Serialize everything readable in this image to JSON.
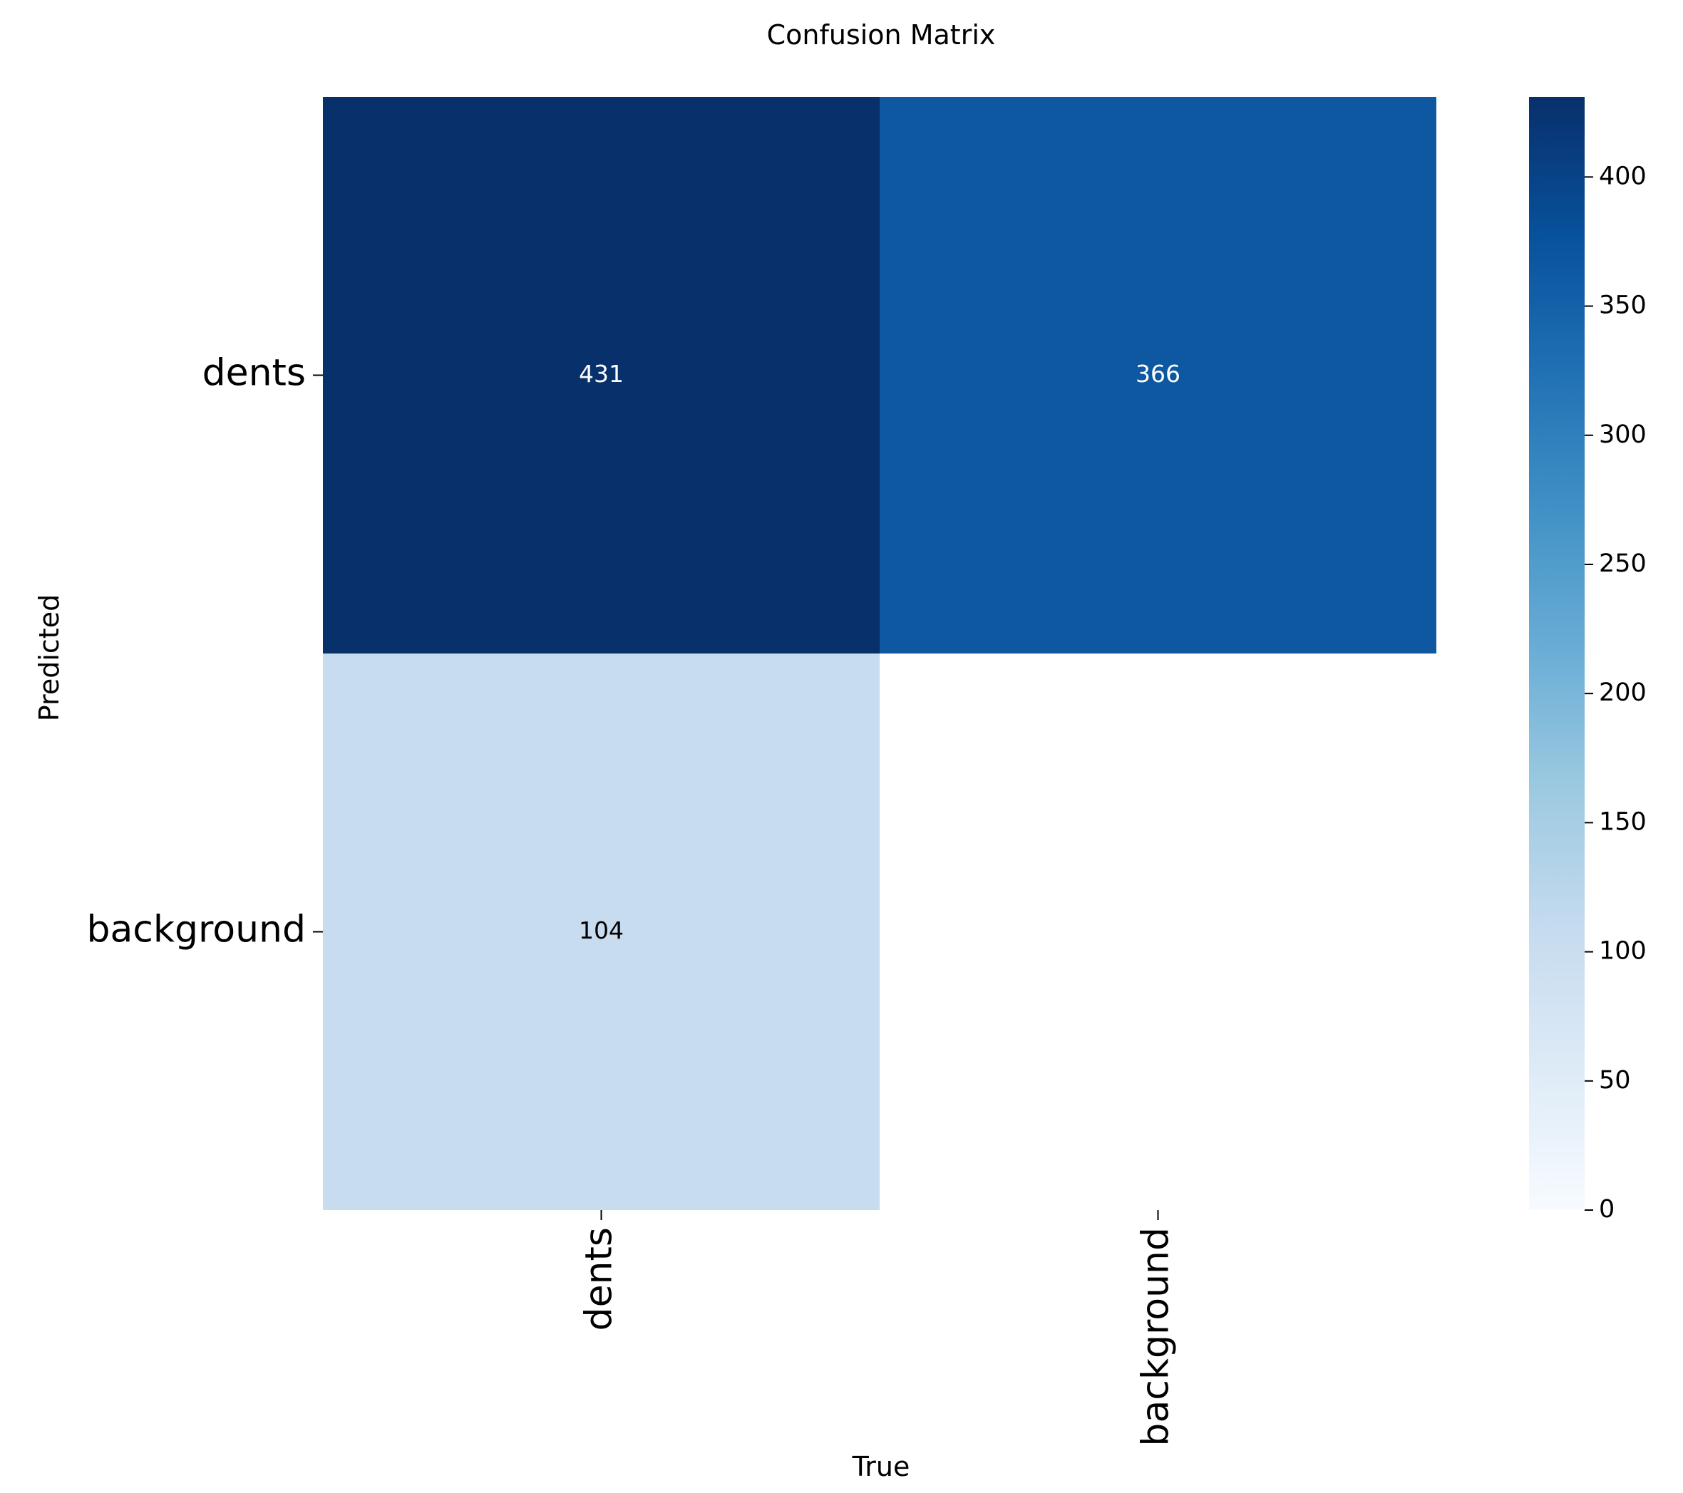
{
  "chart_data": {
    "type": "heatmap",
    "title": "Confusion Matrix",
    "xlabel": "True",
    "ylabel": "Predicted",
    "x_categories": [
      "dents",
      "background"
    ],
    "y_categories": [
      "dents",
      "background"
    ],
    "values": [
      [
        431,
        366
      ],
      [
        104,
        null
      ]
    ],
    "cell_labels": [
      [
        "431",
        "366"
      ],
      [
        "104",
        ""
      ]
    ],
    "colorbar": {
      "range": [
        0,
        431
      ],
      "ticks": [
        0,
        50,
        100,
        150,
        200,
        250,
        300,
        350,
        400
      ],
      "tick_labels": [
        "0",
        "50",
        "100",
        "150",
        "200",
        "250",
        "300",
        "350",
        "400"
      ],
      "colormap": "Blues"
    },
    "grid": false
  }
}
